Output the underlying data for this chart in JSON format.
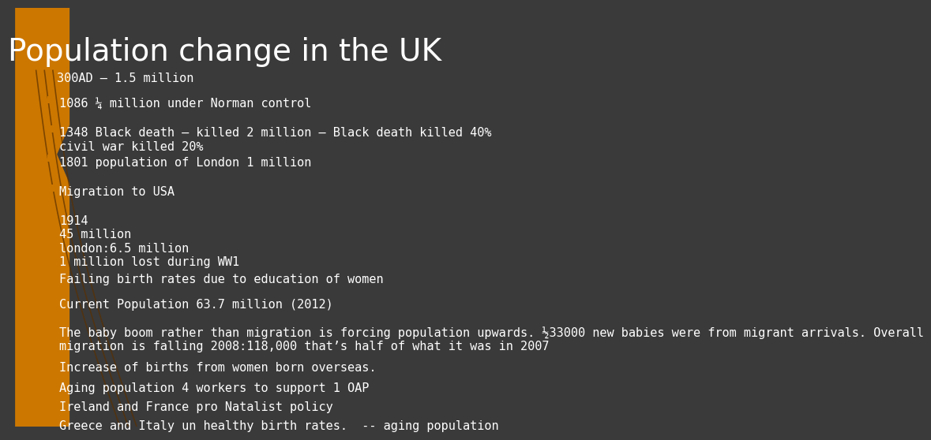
{
  "title": "Population change in the UK",
  "background_color": "#3a3a3a",
  "title_color": "#ffffff",
  "title_fontsize": 28,
  "subtitle": "300AD – 1.5 million",
  "subtitle_color": "#ffffff",
  "subtitle_fontsize": 11,
  "bullet_color": "#ffffff",
  "bullet_fontsize": 11,
  "diamond_color": "#cc7700",
  "orange_shape_color": "#cc7700",
  "bullets": [
    "1086 ¼ million under Norman control",
    "1348 Black death – killed 2 million – Black death killed 40%\ncivil war killed 20%",
    "1801 population of London 1 million",
    "Migration to USA",
    "1914\n45 million\nlondon:6.5 million\n1 million lost during WW1",
    "Failing birth rates due to education of women",
    "Current Population 63.7 million (2012)",
    "The baby boom rather than migration is forcing population upwards. ½33000 new babies were from migrant arrivals. Overall\nmigration is falling 2008:118,000 that’s half of what it was in 2007",
    "Increase of births from women born overseas.",
    "Aging population 4 workers to support 1 OAP",
    "Ireland and France pro Natalist policy",
    "Greece and Italy un healthy birth rates.  -- aging population"
  ]
}
